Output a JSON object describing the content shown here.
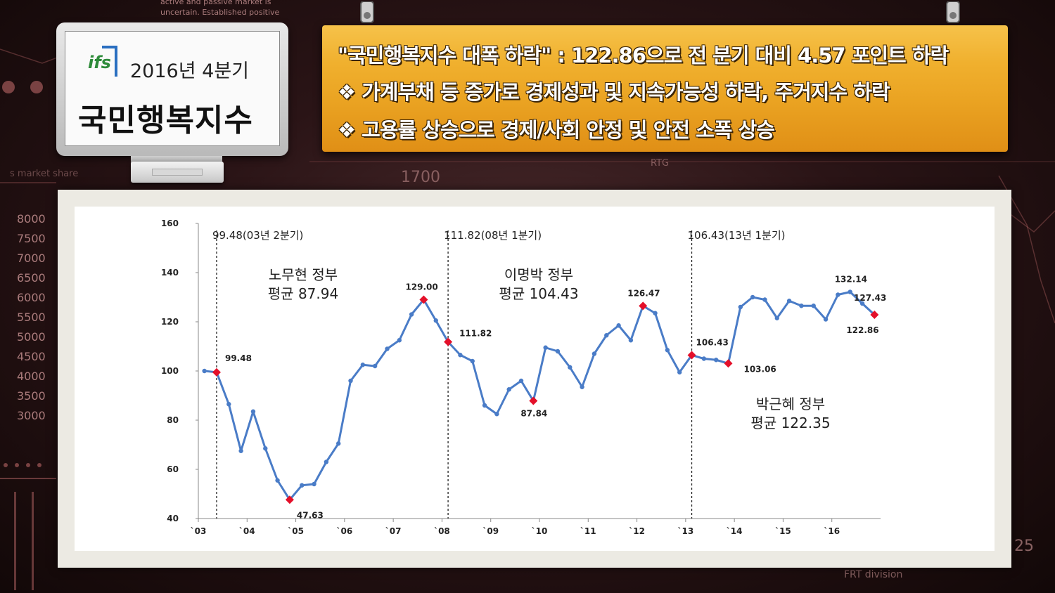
{
  "logo": {
    "brand": "ifs",
    "period": "2016년 4분기",
    "title": "국민행복지수"
  },
  "banner": {
    "line1": "\"국민행복지수 대폭 하락\" : 122.86으로 전 분기 대비 4.57 포인트 하락",
    "line2": "❖ 가계부채 등 증가로 경제성과 및 지속가능성 하락, 주거지수 하락",
    "line3": "❖ 고용률 상승으로 경제/사회 안정 및 안전 소폭 상승"
  },
  "background": {
    "texts": [
      "active and passive market is",
      "uncertain. Established positive",
      "1700",
      "RTG",
      "FRT division",
      "25",
      "s market share"
    ],
    "axis_numbers": [
      "8000",
      "7500",
      "7000",
      "6500",
      "6000",
      "5500",
      "5000",
      "4500",
      "4000",
      "3500",
      "3000"
    ]
  },
  "colors": {
    "line": "#4a7cc7",
    "highlight": "#e4102a",
    "banner": "#f0b02e"
  },
  "chart_data": {
    "type": "line",
    "ylim": [
      40,
      160
    ],
    "yticks": [
      40,
      60,
      80,
      100,
      120,
      140,
      160
    ],
    "xtick_labels": [
      "`03",
      "`04",
      "`05",
      "`06",
      "`07",
      "`08",
      "`09",
      "`10",
      "`11",
      "`12",
      "`13",
      "`14",
      "`15",
      "`16"
    ],
    "x_start": "2003 Q1",
    "series": [
      {
        "values": [
          100.0,
          99.48,
          86.5,
          67.5,
          83.5,
          68.5,
          55.5,
          47.63,
          53.5,
          54.0,
          63.0,
          70.5,
          96.0,
          102.5,
          102.0,
          109.0,
          112.5,
          123.0,
          129.0,
          120.5,
          111.82,
          106.5,
          104.0,
          86.0,
          82.5,
          92.5,
          96.0,
          87.84,
          109.5,
          108.0,
          101.5,
          93.5,
          107.0,
          114.5,
          118.5,
          112.5,
          126.47,
          123.5,
          108.5,
          99.5,
          106.43,
          105.0,
          104.5,
          103.06,
          126.0,
          130.0,
          129.0,
          121.5,
          128.5,
          126.5,
          126.5,
          121.0,
          131.0,
          132.14,
          127.43,
          122.86
        ]
      }
    ],
    "highlights": [
      {
        "index": 1,
        "label": "99.48"
      },
      {
        "index": 7,
        "label": "47.63"
      },
      {
        "index": 18,
        "label": "129.00"
      },
      {
        "index": 20,
        "label": "111.82"
      },
      {
        "index": 27,
        "label": "87.84"
      },
      {
        "index": 36,
        "label": "126.47"
      },
      {
        "index": 40,
        "label": "106.43"
      },
      {
        "index": 43,
        "label": "103.06"
      },
      {
        "index": 55,
        "label": "122.86"
      }
    ],
    "extra_labels": [
      {
        "index": 53,
        "label": "132.14"
      },
      {
        "index": 54,
        "label": "127.43"
      }
    ],
    "dividers": [
      {
        "index": 1,
        "label": "99.48(03년 2분기)"
      },
      {
        "index": 20,
        "label": "111.82(08년 1분기)"
      },
      {
        "index": 40,
        "label": "106.43(13년 1분기)"
      }
    ],
    "annotations": [
      {
        "line1": "노무현 정부",
        "line2": "평균 87.94"
      },
      {
        "line1": "이명박 정부",
        "line2": "평균 104.43"
      },
      {
        "line1": "박근혜 정부",
        "line2": "평균 122.35"
      }
    ]
  }
}
